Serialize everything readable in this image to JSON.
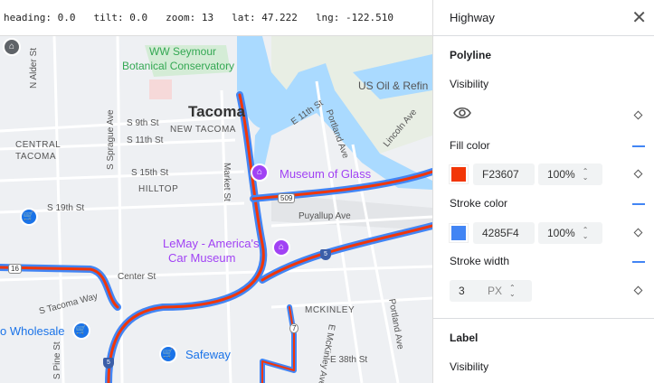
{
  "status": {
    "heading": "heading: 0.0",
    "tilt": "tilt: 0.0",
    "zoom": "zoom: 13",
    "lat": "lat: 47.222",
    "lng": "lng: -122.510"
  },
  "map": {
    "labels": {
      "conservatory1": "WW Seymour",
      "conservatory2": "Botanical Conservatory",
      "tacoma": "Tacoma",
      "new_tacoma": "NEW TACOMA",
      "central1": "CENTRAL",
      "central2": "TACOMA",
      "hilltop": "HILLTOP",
      "s9": "S 9th St",
      "s11": "S 11th St",
      "s15": "S 15th St",
      "s19": "S 19th St",
      "museum_glass": "Museum of Glass",
      "lemay1": "LeMay - America's",
      "lemay2": "Car Museum",
      "puyallup": "Puyallup Ave",
      "center": "Center St",
      "stacoma": "S Tacoma Way",
      "mckinley": "MCKINLEY",
      "safeway": "Safeway",
      "wholesale": "o Wholesale",
      "e38": "E 38th St",
      "usoil": "US Oil & Refin",
      "e11": "E 11th St",
      "portland1": "Portland Ave",
      "portland2": "Portland Ave",
      "lincoln": "Lincoln Ave",
      "market": "Market St",
      "sprague": "S Sprague Ave",
      "alder": "N Alder St",
      "pine": "S Pine St",
      "emckinley": "E McKinley Ave"
    },
    "shields": {
      "r509": "509",
      "r16": "16",
      "i5a": "5",
      "r7": "7",
      "i5b": "5"
    },
    "highway_fill": "#F23607",
    "highway_stroke": "#4285F4"
  },
  "panel": {
    "title": "Highway",
    "polyline": "Polyline",
    "visibility": "Visibility",
    "fill_color": "Fill color",
    "fill_hex": "F23607",
    "fill_opacity": "100%",
    "fill_swatch": "#F23607",
    "stroke_color": "Stroke color",
    "stroke_hex": "4285F4",
    "stroke_opacity": "100%",
    "stroke_swatch": "#4285F4",
    "stroke_width": "Stroke width",
    "stroke_width_value": "3",
    "stroke_width_unit": "PX",
    "label": "Label",
    "label_visibility": "Visibility"
  }
}
